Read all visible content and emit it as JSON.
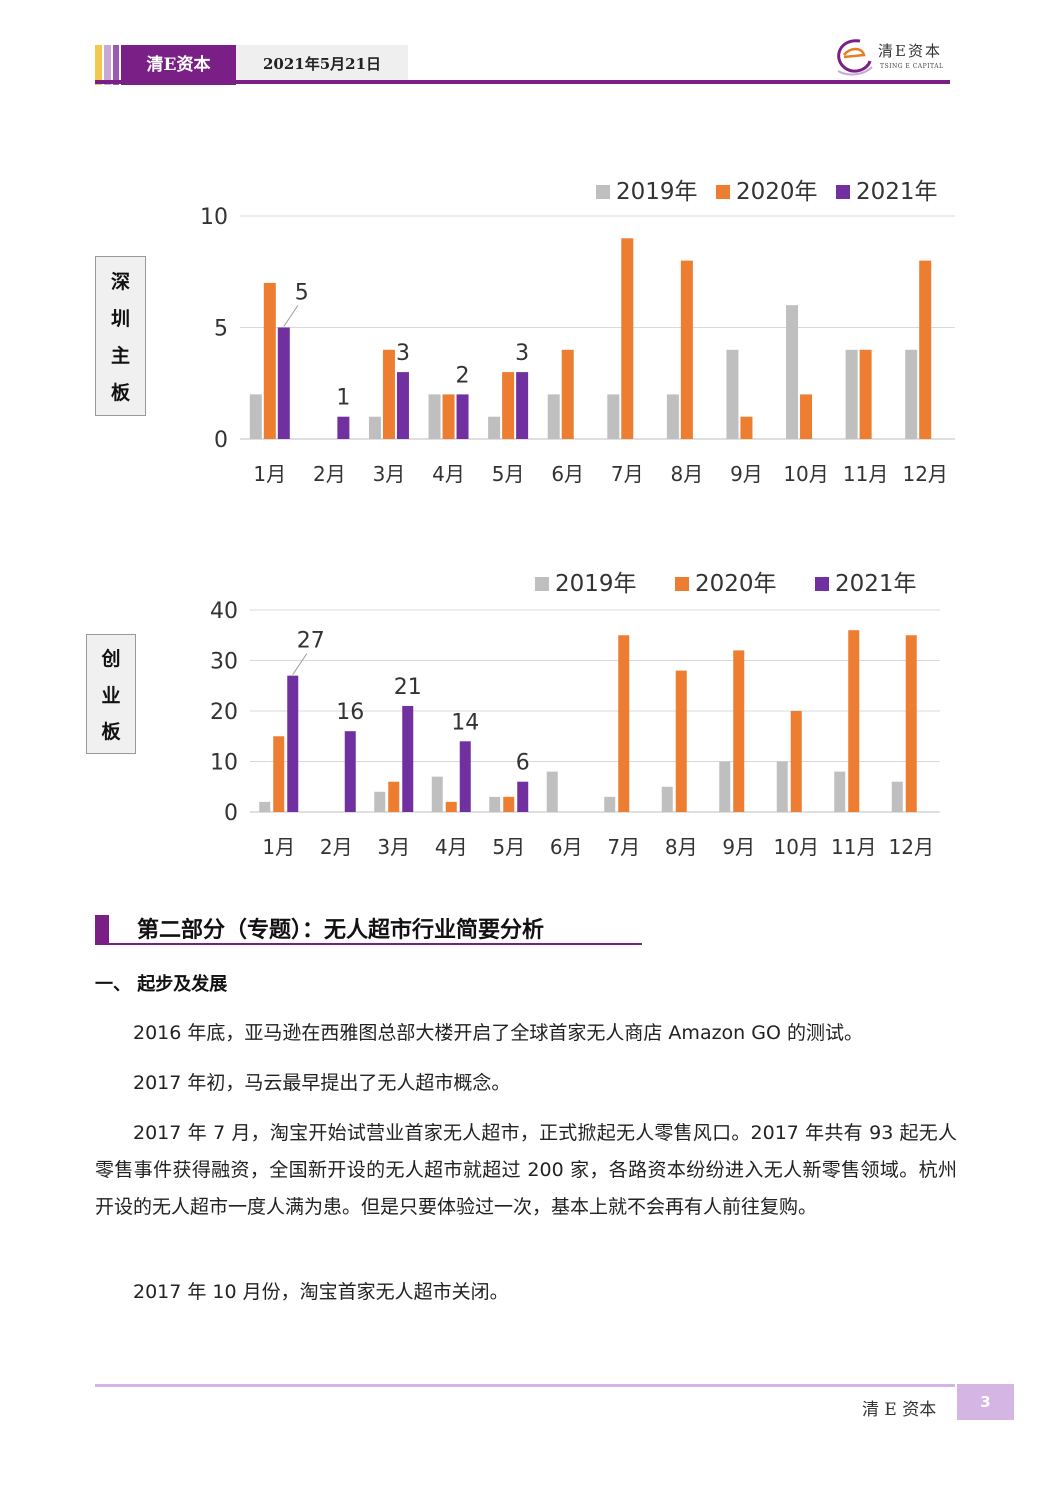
{
  "header": {
    "brand": "清E资本",
    "date": "2021年5月21日",
    "logo_cn": "清E资本",
    "logo_en": "TSING E CAPITAL"
  },
  "charts_labels": {
    "chart1_vertical": [
      "深",
      "圳",
      "主",
      "板"
    ],
    "chart2_vertical": [
      "创",
      "业",
      "板"
    ]
  },
  "chart_data": [
    {
      "type": "bar",
      "categories": [
        "1月",
        "2月",
        "3月",
        "4月",
        "5月",
        "6月",
        "7月",
        "8月",
        "9月",
        "10月",
        "11月",
        "12月"
      ],
      "series": [
        {
          "name": "2019年",
          "values": [
            2,
            0,
            1,
            2,
            1,
            2,
            2,
            2,
            4,
            6,
            4,
            4
          ]
        },
        {
          "name": "2020年",
          "values": [
            7,
            0,
            4,
            2,
            3,
            4,
            9,
            8,
            1,
            2,
            4,
            8
          ]
        },
        {
          "name": "2021年",
          "values": [
            5,
            1,
            3,
            2,
            3,
            null,
            null,
            null,
            null,
            null,
            null,
            null
          ]
        }
      ],
      "data_labels": {
        "series": "2021年",
        "values": [
          5,
          1,
          3,
          2,
          3
        ]
      },
      "yticks": [
        0,
        5,
        10
      ],
      "ylim": [
        0,
        10
      ],
      "grid": true,
      "legend": "top-right",
      "colors": {
        "2019年": "#bfbfbf",
        "2020年": "#ed7d31",
        "2021年": "#7030a0"
      }
    },
    {
      "type": "bar",
      "categories": [
        "1月",
        "2月",
        "3月",
        "4月",
        "5月",
        "6月",
        "7月",
        "8月",
        "9月",
        "10月",
        "11月",
        "12月"
      ],
      "series": [
        {
          "name": "2019年",
          "values": [
            2,
            0,
            4,
            7,
            3,
            8,
            3,
            5,
            10,
            10,
            8,
            6
          ]
        },
        {
          "name": "2020年",
          "values": [
            15,
            0,
            6,
            2,
            3,
            0,
            35,
            28,
            32,
            20,
            36,
            35
          ]
        },
        {
          "name": "2021年",
          "values": [
            27,
            16,
            21,
            14,
            6,
            null,
            null,
            null,
            null,
            null,
            null,
            null
          ]
        }
      ],
      "data_labels": {
        "series": "2021年",
        "values": [
          27,
          16,
          21,
          14,
          6
        ]
      },
      "yticks": [
        0,
        10,
        20,
        30,
        40
      ],
      "ylim": [
        0,
        40
      ],
      "grid": true,
      "legend": "top-right",
      "colors": {
        "2019年": "#bfbfbf",
        "2020年": "#ed7d31",
        "2021年": "#7030a0"
      }
    }
  ],
  "section": {
    "title": "第二部分（专题）：无人超市行业简要分析",
    "subtitle": "一、 起步及发展",
    "paragraphs": [
      "2016 年底，亚马逊在西雅图总部大楼开启了全球首家无人商店 Amazon GO 的测试。",
      "2017 年初，马云最早提出了无人超市概念。",
      "2017 年 7 月，淘宝开始试营业首家无人超市，正式掀起无人零售风口。2017 年共有 93 起无人零售事件获得融资，全国新开设的无人超市就超过 200 家，各路资本纷纷进入无人新零售领域。杭州开设的无人超市一度人满为患。但是只要体验过一次，基本上就不会再有人前往复购。",
      "2017 年 10 月份，淘宝首家无人超市关闭。"
    ]
  },
  "footer": {
    "brand": "清 E 资本",
    "page": "3"
  }
}
